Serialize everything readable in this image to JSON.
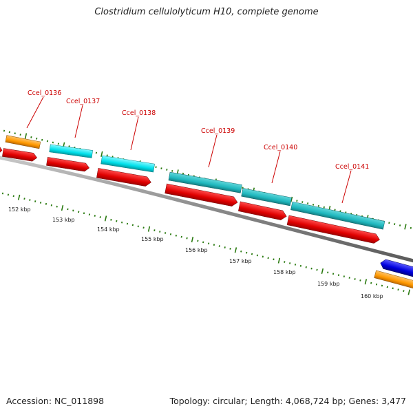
{
  "title": "Clostridium cellulolyticum H10, complete genome",
  "footer": {
    "accession": "Accession: NC_011898",
    "summary": "Topology: circular; Length: 4,068,724 bp; Genes: 3,477"
  },
  "gene_labels": [
    "Ccel_0136",
    "Ccel_0137",
    "Ccel_0138",
    "Ccel_0139",
    "Ccel_0140",
    "Ccel_0141"
  ],
  "kbp_ticks": [
    "152 kbp",
    "153 kbp",
    "154 kbp",
    "155 kbp",
    "156 kbp",
    "157 kbp",
    "158 kbp",
    "159 kbp",
    "160 kbp"
  ],
  "colors": {
    "backbone": "#808080",
    "cds": "#e60000",
    "gene_cyan": "#00d8e0",
    "gene_teal": "#1fb8be",
    "gene_orange": "#ff9900",
    "gene_blue": "#0000cc",
    "tick": "#2a7a10",
    "label": "#cc0000"
  }
}
